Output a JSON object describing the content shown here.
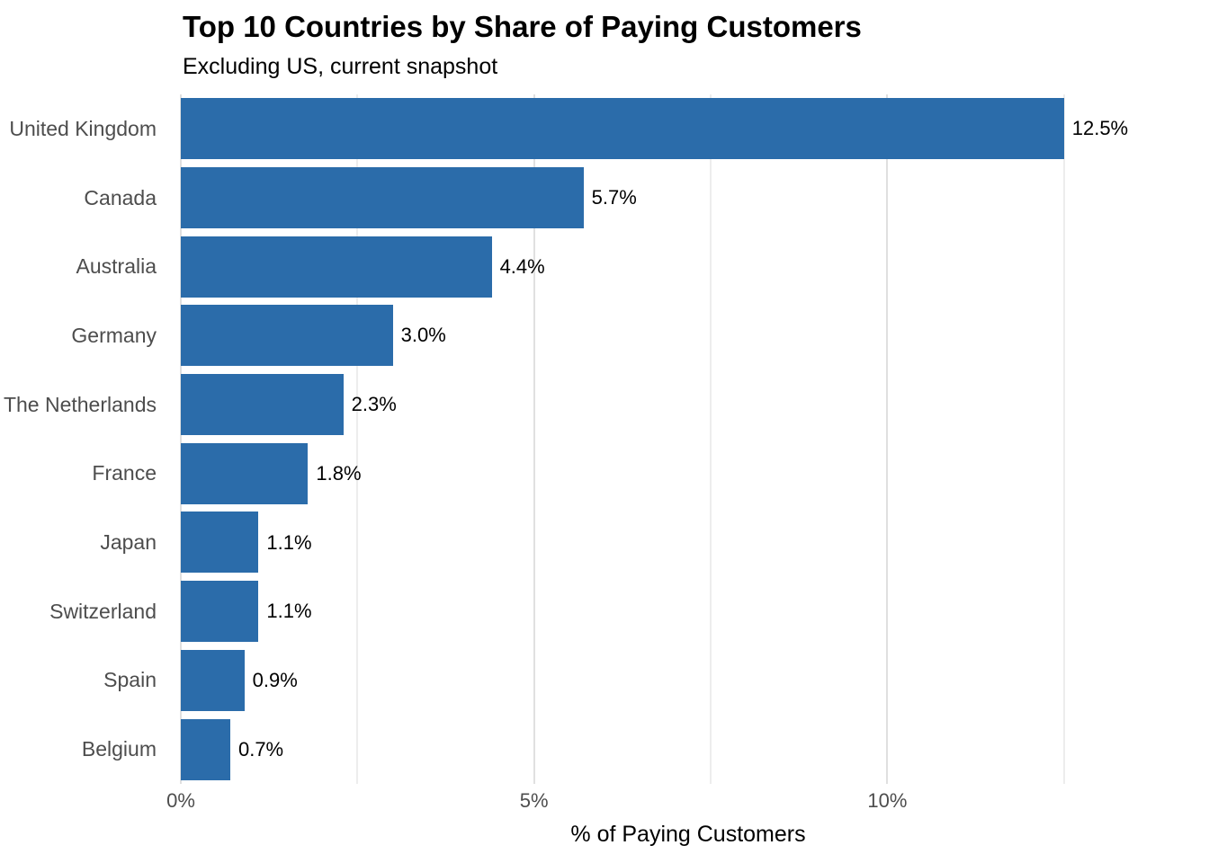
{
  "chart": {
    "title": "Top 10 Countries by Share of Paying Customers",
    "subtitle": "Excluding US, current snapshot",
    "xlabel": "% of Paying Customers"
  },
  "chart_data": {
    "type": "bar",
    "orientation": "horizontal",
    "title": "Top 10 Countries by Share of Paying Customers",
    "subtitle": "Excluding US, current snapshot",
    "xlabel": "% of Paying Customers",
    "ylabel": "",
    "categories": [
      "United Kingdom",
      "Canada",
      "Australia",
      "Germany",
      "The Netherlands",
      "France",
      "Japan",
      "Switzerland",
      "Spain",
      "Belgium"
    ],
    "values": [
      12.5,
      5.7,
      4.4,
      3.0,
      2.3,
      1.8,
      1.1,
      1.1,
      0.9,
      0.7
    ],
    "value_labels": [
      "12.5%",
      "5.7%",
      "4.4%",
      "3.0%",
      "2.3%",
      "1.8%",
      "1.1%",
      "1.1%",
      "0.9%",
      "0.7%"
    ],
    "x_ticks": [
      {
        "value": 0,
        "label": "0%"
      },
      {
        "value": 5,
        "label": "5%"
      },
      {
        "value": 10,
        "label": "10%"
      }
    ],
    "x_minor_gridlines": [
      2.5,
      7.5,
      12.5
    ],
    "xlim": [
      0,
      14.375
    ],
    "grid": "vertical-only",
    "legend": "none",
    "bar_color": "#2b6caa",
    "grid_major_color": "#e0e0e0",
    "grid_minor_color": "#ededed",
    "axis_text_color": "#4d4d4d",
    "value_label_color": "#000000"
  }
}
